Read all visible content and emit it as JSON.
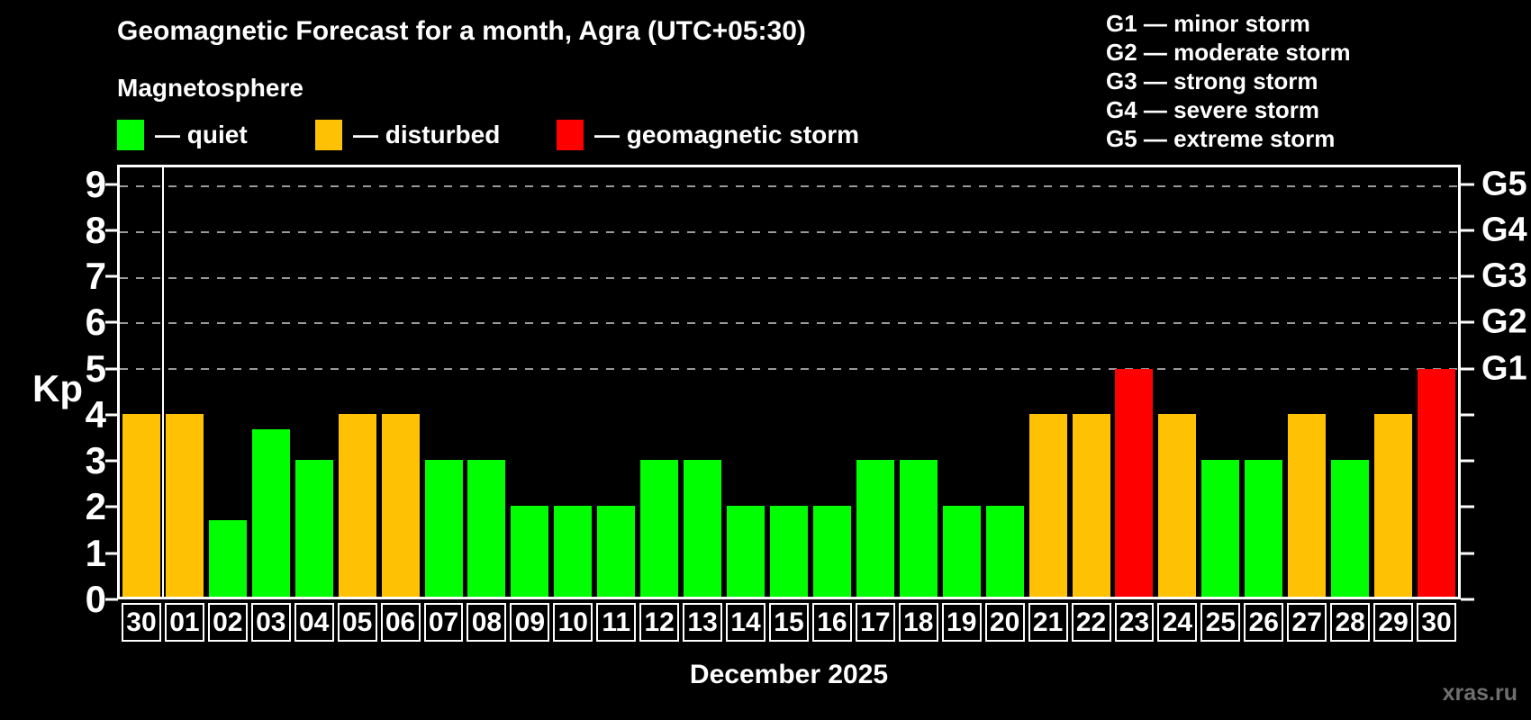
{
  "title": "Geomagnetic Forecast for a month, Agra (UTC+05:30)",
  "subtitle": "Magnetosphere",
  "legend": [
    {
      "key": "quiet",
      "label": "— quiet",
      "color": "#00ff00"
    },
    {
      "key": "disturbed",
      "label": "— disturbed",
      "color": "#ffc103"
    },
    {
      "key": "storm",
      "label": "— geomagnetic storm",
      "color": "#ff0000"
    }
  ],
  "storm_scale": [
    "G1 — minor storm",
    "G2 — moderate storm",
    "G3 — strong storm",
    "G4 — severe storm",
    "G5 — extreme storm"
  ],
  "watermark": "xras.ru",
  "chart_data": {
    "type": "bar",
    "title": "Geomagnetic Forecast for a month, Agra (UTC+05:30)",
    "xlabel": "December 2025",
    "ylabel": "Kp",
    "ylim": [
      0,
      9.42
    ],
    "yticks": [
      0,
      1,
      2,
      3,
      4,
      5,
      6,
      7,
      8,
      9
    ],
    "gridline_kp": [
      5,
      6,
      7,
      8,
      9
    ],
    "grid": "dashed horizontal at Kp 5-9 only",
    "legend_position": "top-left",
    "right_axis": [
      {
        "kp": 5,
        "label": "G1"
      },
      {
        "kp": 6,
        "label": "G2"
      },
      {
        "kp": 7,
        "label": "G3"
      },
      {
        "kp": 8,
        "label": "G4"
      },
      {
        "kp": 9,
        "label": "G5"
      }
    ],
    "month_separator_after_index": 0,
    "status_colors": {
      "quiet": "#00ff00",
      "disturbed": "#ffc103",
      "storm": "#ff0000"
    },
    "bars": [
      {
        "day": "30",
        "kp": 4,
        "status": "disturbed"
      },
      {
        "day": "01",
        "kp": 4,
        "status": "disturbed"
      },
      {
        "day": "02",
        "kp": 1.67,
        "status": "quiet"
      },
      {
        "day": "03",
        "kp": 3.67,
        "status": "quiet"
      },
      {
        "day": "04",
        "kp": 3,
        "status": "quiet"
      },
      {
        "day": "05",
        "kp": 4,
        "status": "disturbed"
      },
      {
        "day": "06",
        "kp": 4,
        "status": "disturbed"
      },
      {
        "day": "07",
        "kp": 3,
        "status": "quiet"
      },
      {
        "day": "08",
        "kp": 3,
        "status": "quiet"
      },
      {
        "day": "09",
        "kp": 2,
        "status": "quiet"
      },
      {
        "day": "10",
        "kp": 2,
        "status": "quiet"
      },
      {
        "day": "11",
        "kp": 2,
        "status": "quiet"
      },
      {
        "day": "12",
        "kp": 3,
        "status": "quiet"
      },
      {
        "day": "13",
        "kp": 3,
        "status": "quiet"
      },
      {
        "day": "14",
        "kp": 2,
        "status": "quiet"
      },
      {
        "day": "15",
        "kp": 2,
        "status": "quiet"
      },
      {
        "day": "16",
        "kp": 2,
        "status": "quiet"
      },
      {
        "day": "17",
        "kp": 3,
        "status": "quiet"
      },
      {
        "day": "18",
        "kp": 3,
        "status": "quiet"
      },
      {
        "day": "19",
        "kp": 2,
        "status": "quiet"
      },
      {
        "day": "20",
        "kp": 2,
        "status": "quiet"
      },
      {
        "day": "21",
        "kp": 4,
        "status": "disturbed"
      },
      {
        "day": "22",
        "kp": 4,
        "status": "disturbed"
      },
      {
        "day": "23",
        "kp": 5,
        "status": "storm"
      },
      {
        "day": "24",
        "kp": 4,
        "status": "disturbed"
      },
      {
        "day": "25",
        "kp": 3,
        "status": "quiet"
      },
      {
        "day": "26",
        "kp": 3,
        "status": "quiet"
      },
      {
        "day": "27",
        "kp": 4,
        "status": "disturbed"
      },
      {
        "day": "28",
        "kp": 3,
        "status": "quiet"
      },
      {
        "day": "29",
        "kp": 4,
        "status": "disturbed"
      },
      {
        "day": "30",
        "kp": 5,
        "status": "storm"
      }
    ]
  }
}
